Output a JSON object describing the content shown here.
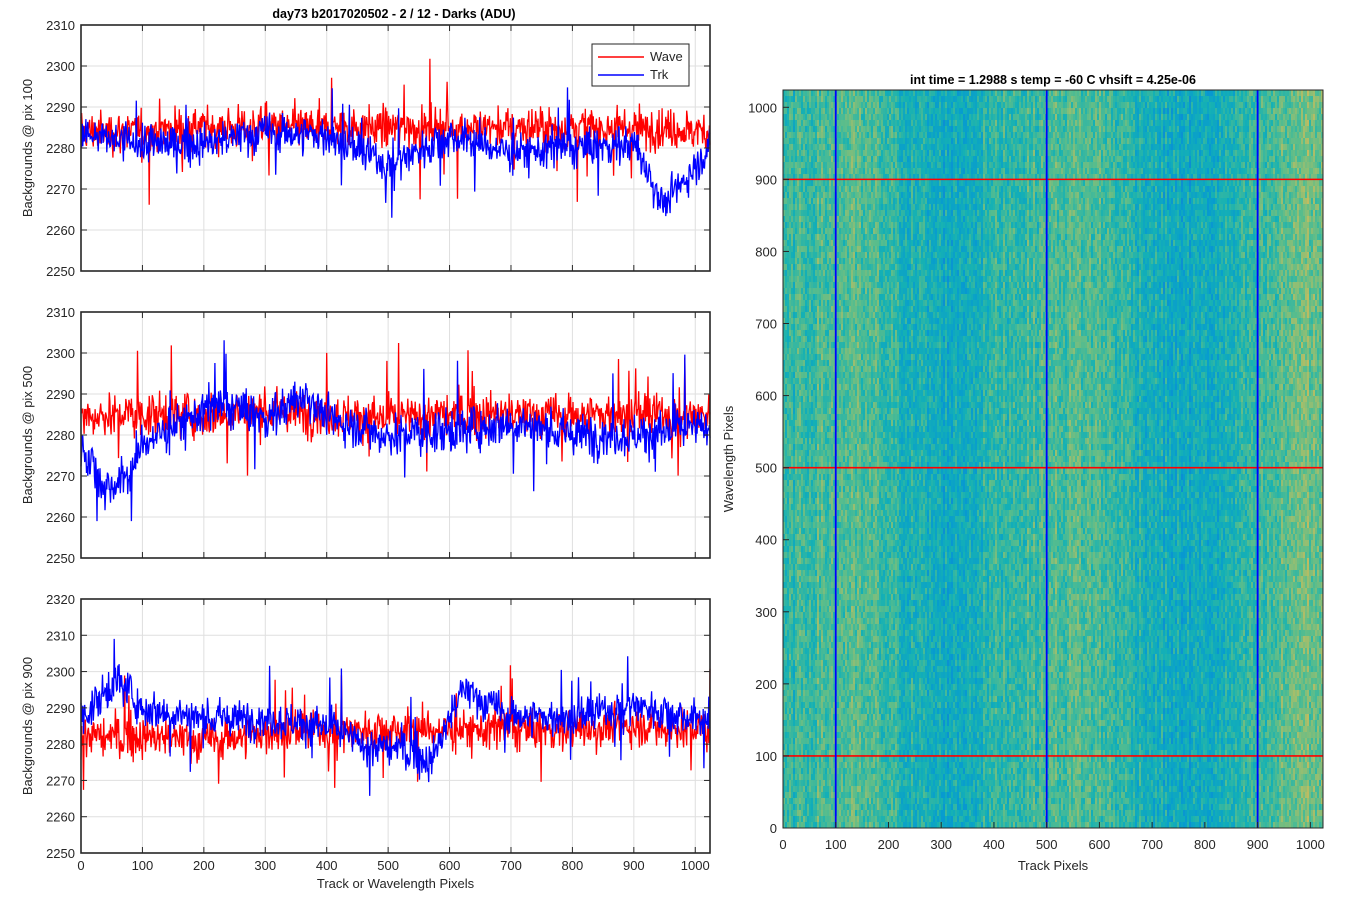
{
  "figure": {
    "title": "day73 b2017020502 - 2 / 12 - Darks (ADU)",
    "colors": {
      "wave": "#ff0000",
      "trk": "#0000ff",
      "axes": "#262626",
      "grid": "#dfdfdf"
    }
  },
  "chart_data": [
    {
      "type": "line",
      "ylabel": "Backgrounds @ pix 100",
      "xlabel": "",
      "xlim": [
        0,
        1024
      ],
      "ylim": [
        2250,
        2310
      ],
      "xticks": [
        0,
        100,
        200,
        300,
        400,
        500,
        600,
        700,
        800,
        900,
        1000
      ],
      "yticks": [
        2250,
        2260,
        2270,
        2280,
        2290,
        2300,
        2310
      ],
      "grid": true,
      "legend": {
        "position": "top-right",
        "entries": [
          "Wave",
          "Trk"
        ]
      },
      "series": [
        {
          "name": "Wave",
          "color": "#ff0000",
          "x": [
            0,
            100,
            200,
            300,
            400,
            500,
            600,
            700,
            800,
            900,
            1024
          ],
          "values": [
            2284,
            2284,
            2285,
            2285,
            2285,
            2285,
            2285,
            2285,
            2285,
            2285,
            2284
          ],
          "min": 2260,
          "max": 2308
        },
        {
          "name": "Trk",
          "color": "#0000ff",
          "x": [
            0,
            100,
            200,
            300,
            400,
            500,
            600,
            700,
            800,
            900,
            950,
            1024
          ],
          "values": [
            2283,
            2281,
            2281,
            2284,
            2283,
            2276,
            2283,
            2279,
            2280,
            2281,
            2266,
            2280
          ],
          "min": 2256,
          "max": 2302
        }
      ]
    },
    {
      "type": "line",
      "ylabel": "Backgrounds @ pix 500",
      "xlabel": "",
      "xlim": [
        0,
        1024
      ],
      "ylim": [
        2250,
        2310
      ],
      "xticks": [
        0,
        100,
        200,
        300,
        400,
        500,
        600,
        700,
        800,
        900,
        1000
      ],
      "yticks": [
        2250,
        2260,
        2270,
        2280,
        2290,
        2300,
        2310
      ],
      "grid": true,
      "series": [
        {
          "name": "Wave",
          "color": "#ff0000",
          "x": [
            0,
            100,
            200,
            300,
            400,
            500,
            600,
            700,
            800,
            900,
            1024
          ],
          "values": [
            2285,
            2285,
            2285,
            2286,
            2285,
            2284,
            2285,
            2285,
            2285,
            2285,
            2285
          ],
          "min": 2259,
          "max": 2310
        },
        {
          "name": "Trk",
          "color": "#0000ff",
          "x": [
            0,
            40,
            80,
            100,
            200,
            250,
            300,
            370,
            400,
            500,
            600,
            700,
            800,
            900,
            1024
          ],
          "values": [
            2278,
            2267,
            2270,
            2278,
            2286,
            2287,
            2284,
            2290,
            2284,
            2280,
            2281,
            2283,
            2280,
            2280,
            2282
          ],
          "min": 2259,
          "max": 2310
        }
      ]
    },
    {
      "type": "line",
      "ylabel": "Backgrounds @ pix 900",
      "xlabel": "Track or Wavelength Pixels",
      "xlim": [
        0,
        1024
      ],
      "ylim": [
        2250,
        2320
      ],
      "xticks": [
        0,
        100,
        200,
        300,
        400,
        500,
        600,
        700,
        800,
        900,
        1000
      ],
      "yticks": [
        2250,
        2260,
        2270,
        2280,
        2290,
        2300,
        2310,
        2320
      ],
      "grid": true,
      "series": [
        {
          "name": "Wave",
          "color": "#ff0000",
          "x": [
            0,
            100,
            200,
            300,
            400,
            500,
            600,
            700,
            800,
            900,
            1024
          ],
          "values": [
            2282,
            2282,
            2281,
            2283,
            2284,
            2284,
            2284,
            2284,
            2284,
            2285,
            2284
          ],
          "min": 2256,
          "max": 2311
        },
        {
          "name": "Trk",
          "color": "#0000ff",
          "x": [
            0,
            60,
            100,
            200,
            300,
            400,
            470,
            520,
            570,
            620,
            700,
            800,
            900,
            1024
          ],
          "values": [
            2287,
            2298,
            2290,
            2287,
            2287,
            2285,
            2279,
            2279,
            2275,
            2295,
            2288,
            2287,
            2291,
            2286
          ],
          "min": 2259,
          "max": 2309
        }
      ]
    },
    {
      "type": "heatmap",
      "title": "int time = 1.2988 s    temp = -60 C    vhsift = 4.25e-06",
      "xlabel": "Track Pixels",
      "ylabel": "Wavelength Pixels",
      "xlim": [
        0,
        1024
      ],
      "ylim": [
        0,
        1024
      ],
      "xticks": [
        0,
        100,
        200,
        300,
        400,
        500,
        600,
        700,
        800,
        900,
        1000
      ],
      "yticks": [
        0,
        100,
        200,
        300,
        400,
        500,
        600,
        700,
        800,
        900,
        1000
      ],
      "colormap": "parula",
      "marker_lines": {
        "vertical": {
          "color": "#0000ff",
          "x": [
            100,
            500,
            900
          ]
        },
        "horizontal": {
          "color": "#ff0000",
          "y": [
            100,
            500,
            900
          ]
        }
      }
    }
  ]
}
